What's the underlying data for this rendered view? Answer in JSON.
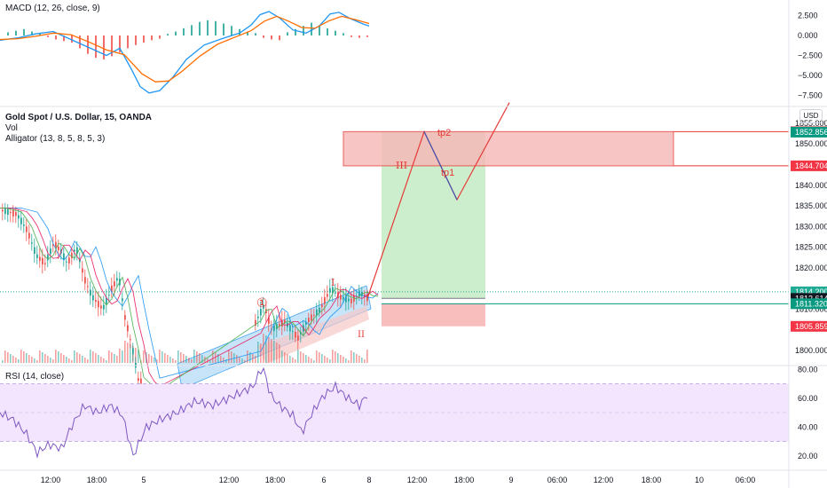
{
  "panels": {
    "macd": {
      "label": "MACD (12, 26, close, 9)",
      "ticks": [
        "2.500",
        "0.000",
        "−2.500",
        "−5.000",
        "−7.500"
      ],
      "tick_values": [
        2.5,
        0,
        -2.5,
        -5,
        -7.5
      ]
    },
    "price": {
      "symbol_label": "Gold Spot / U.S. Dollar, 15, OANDA",
      "vol_label": "Vol",
      "alligator_label": "Alligator (13, 8, 5, 8, 5, 3)",
      "currency_button": "USD",
      "ticks": [
        "1855.000",
        "1850.000",
        "1840.000",
        "1835.000",
        "1830.000",
        "1825.000",
        "1820.000",
        "1810.000",
        "1800.000"
      ],
      "tick_values": [
        1855,
        1850,
        1840,
        1835,
        1830,
        1825,
        1820,
        1810,
        1800
      ]
    },
    "rsi": {
      "label": "RSI (14, close)",
      "ticks": [
        "80.00",
        "60.00",
        "40.00",
        "20.00"
      ],
      "tick_values": [
        80,
        60,
        40,
        20
      ]
    }
  },
  "price_tags": [
    {
      "label": "1852.983",
      "value": 1852.983,
      "color": "#f23645"
    },
    {
      "label": "1852.856",
      "value": 1852.856,
      "color": "#089981"
    },
    {
      "label": "1844.704",
      "value": 1844.704,
      "color": "#f23645"
    },
    {
      "label": "1814.200",
      "value": 1814.2,
      "color": "#22ab94"
    },
    {
      "label": "1812.614",
      "value": 1812.614,
      "color": "#131722"
    },
    {
      "label": "1811.320",
      "value": 1811.32,
      "color": "#089981"
    },
    {
      "label": "1805.859",
      "value": 1805.859,
      "color": "#f23645"
    }
  ],
  "time_axis": {
    "labels": [
      "12:00",
      "18:00",
      "5",
      "12:00",
      "18:00",
      "6",
      "8",
      "12:00",
      "18:00",
      "9",
      "06:00",
      "12:00",
      "18:00",
      "10",
      "06:00"
    ]
  },
  "annotations": {
    "circle_one": "①",
    "wave_I": "I",
    "wave_II": "II",
    "wave_III": "III",
    "tp1": "tp1",
    "tp2": "tp2"
  },
  "colors": {
    "bull": "#26a69a",
    "bear": "#ef5350",
    "macd_line": "#2196f3",
    "signal_line": "#ff6d00",
    "rsi_line": "#7e57c2",
    "rsi_band": "#f3e5fd",
    "zone_red": "#f7b7b7",
    "zone_green": "#c8ecc8",
    "channel": "#bfe0f7",
    "annotation_red": "#e53935",
    "annotation_blue": "#3f51b5"
  },
  "chart_data": {
    "type": "candlestick",
    "instrument": "Gold Spot / U.S. Dollar, 15, OANDA",
    "price_range": [
      1797,
      1858
    ],
    "trade_setup": {
      "entry": 1812.614,
      "stop_zone": [
        1805.859,
        1811.32
      ],
      "target_zone": [
        1812.614,
        1852.856
      ],
      "resistance_zone": [
        1844.704,
        1852.983
      ],
      "level_1814": 1814.2,
      "tp1": 1844.704,
      "tp2": 1852.983
    },
    "projected_path_prices": [
      1812.614,
      1852.983,
      1836.5,
      1860
    ],
    "macd_range": [
      -8.5,
      3.5
    ],
    "rsi_range": [
      10,
      90
    ],
    "rsi_bands": [
      30,
      70
    ]
  }
}
